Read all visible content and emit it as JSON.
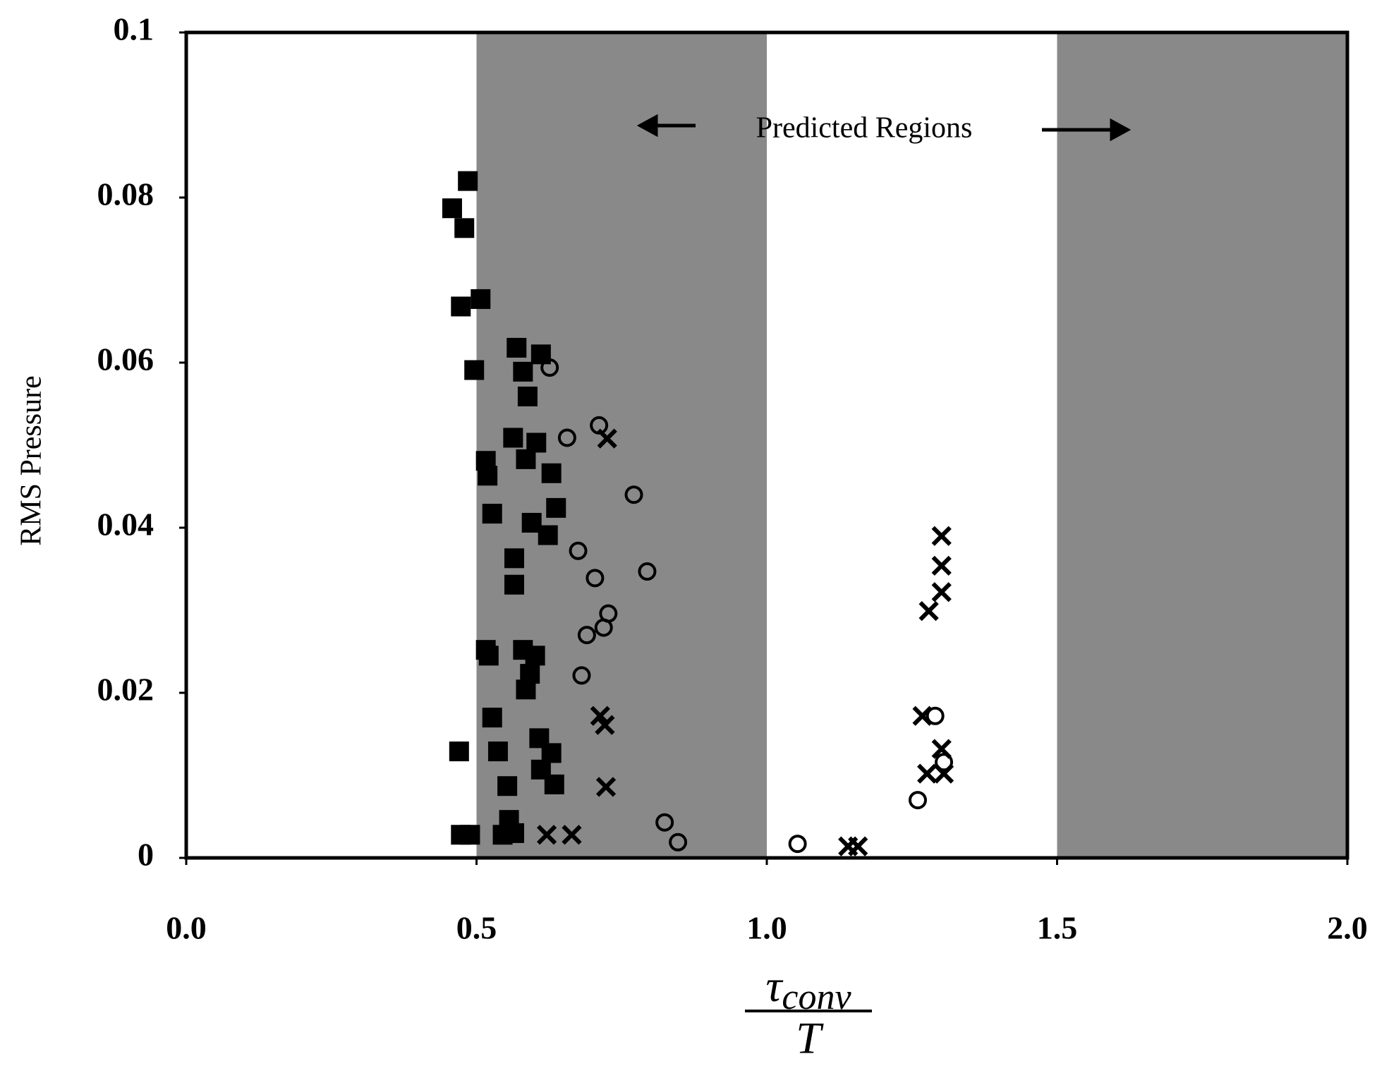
{
  "chart_data": {
    "type": "scatter",
    "ylabel": "RMS Pressure",
    "xlabel": {
      "numerator": "τ",
      "subscript": "conv",
      "denominator": "T"
    },
    "annotation": "Predicted Regions",
    "shaded_regions": [
      [
        0.5,
        1.0
      ],
      [
        1.5,
        2.0
      ]
    ],
    "shade_color": "#898989",
    "xlim": [
      0,
      2
    ],
    "ylim": [
      0,
      0.1
    ],
    "xticks": [
      {
        "value": 0,
        "label": "0.0"
      },
      0.5,
      {
        "value": 1,
        "label": "1.0"
      },
      1.5,
      {
        "value": 2,
        "label": "2.0"
      }
    ],
    "yticks": [
      0,
      0.02,
      0.04,
      0.06,
      0.08,
      0.1
    ],
    "series": [
      {
        "marker": "square",
        "color": "#000000",
        "x": [
          0.458,
          0.485,
          0.479,
          0.473,
          0.507,
          0.496,
          0.569,
          0.611,
          0.58,
          0.588,
          0.563,
          0.603,
          0.585,
          0.516,
          0.519,
          0.629,
          0.527,
          0.637,
          0.595,
          0.623,
          0.565,
          0.565,
          0.516,
          0.521,
          0.58,
          0.601,
          0.592,
          0.585,
          0.527,
          0.608,
          0.47,
          0.537,
          0.629,
          0.611,
          0.634,
          0.553,
          0.556,
          0.473,
          0.489,
          0.545,
          0.565
        ],
        "values": [
          0.0787,
          0.082,
          0.0763,
          0.0668,
          0.0677,
          0.0591,
          0.0618,
          0.061,
          0.0589,
          0.0559,
          0.0509,
          0.0503,
          0.0483,
          0.0481,
          0.0463,
          0.0466,
          0.0417,
          0.0424,
          0.0406,
          0.0391,
          0.0363,
          0.0331,
          0.0252,
          0.0245,
          0.0252,
          0.0245,
          0.0223,
          0.0204,
          0.017,
          0.0145,
          0.0129,
          0.0129,
          0.0127,
          0.0107,
          0.0089,
          0.0087,
          0.0046,
          0.0028,
          0.0028,
          0.0028,
          0.003
        ]
      },
      {
        "marker": "circle",
        "color": "#000000",
        "x": [
          0.626,
          0.656,
          0.711,
          0.771,
          0.675,
          0.704,
          0.794,
          0.727,
          0.719,
          0.69,
          0.681,
          0.824,
          0.847,
          1.053,
          1.29,
          1.305,
          1.26
        ],
        "values": [
          0.0594,
          0.0509,
          0.0524,
          0.044,
          0.0372,
          0.0339,
          0.0347,
          0.0296,
          0.0279,
          0.027,
          0.0221,
          0.0043,
          0.0019,
          0.0017,
          0.0172,
          0.0116,
          0.007
        ]
      },
      {
        "marker": "cross",
        "color": "#000000",
        "x": [
          0.725,
          0.713,
          0.721,
          0.723,
          0.621,
          0.664,
          1.14,
          1.157,
          1.301,
          1.301,
          1.301,
          1.279,
          1.301,
          1.276,
          1.305,
          1.268
        ],
        "values": [
          0.0508,
          0.0172,
          0.0161,
          0.0086,
          0.0028,
          0.0028,
          0.0014,
          0.0014,
          0.039,
          0.0354,
          0.0322,
          0.0299,
          0.0132,
          0.0102,
          0.0102,
          0.0172
        ]
      }
    ]
  }
}
